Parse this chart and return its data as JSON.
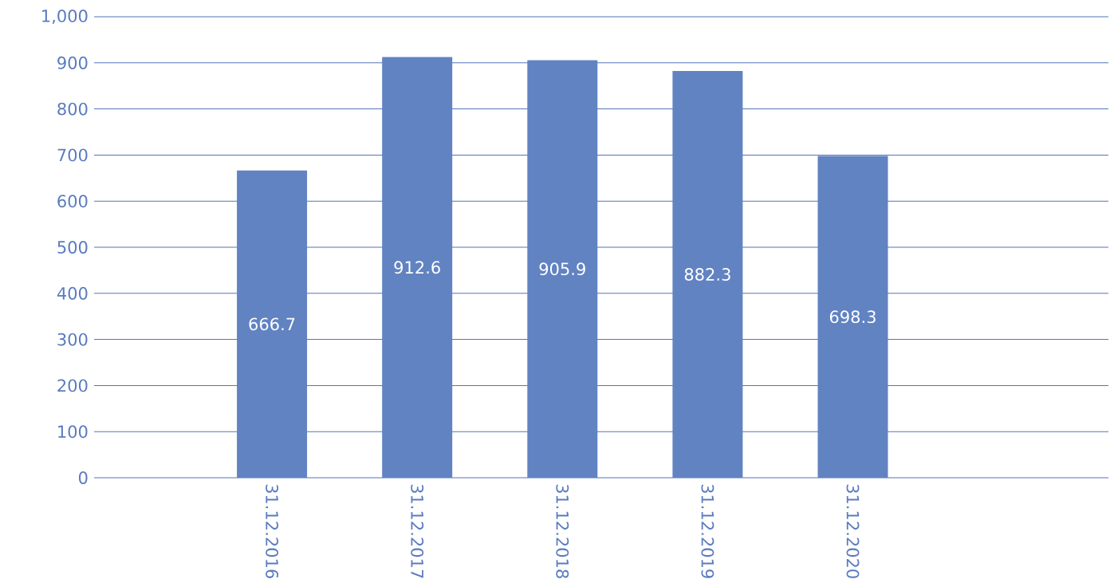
{
  "chart_data": {
    "type": "bar",
    "categories": [
      "31.12.2016",
      "31.12.2017",
      "31.12.2018",
      "31.12.2019",
      "31.12.2020"
    ],
    "values": [
      666.7,
      912.6,
      905.9,
      882.3,
      698.3
    ],
    "color": "#6183c2",
    "ylim": [
      0,
      1000
    ],
    "yticks": [
      0,
      100,
      200,
      300,
      400,
      500,
      600,
      700,
      800,
      900,
      {
        "value": 1000,
        "label": "1,000"
      }
    ],
    "grid": "y",
    "data_labels": true
  }
}
